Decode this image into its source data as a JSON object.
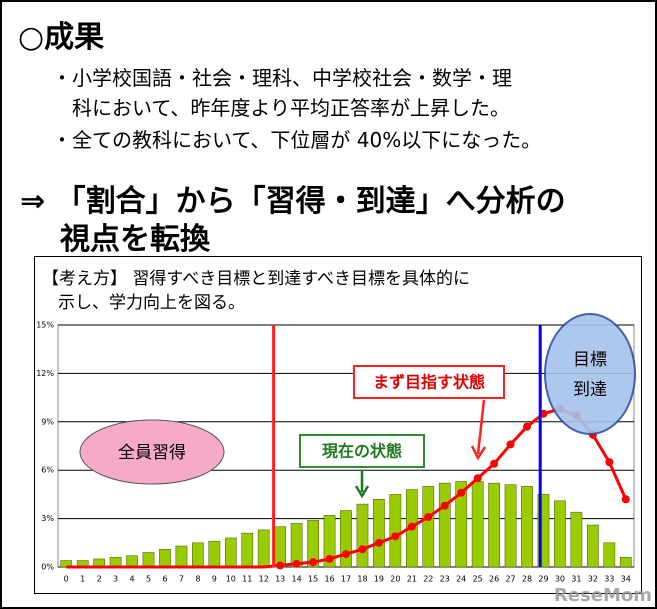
{
  "slide": {
    "title": "○成果",
    "bullets": [
      "・小学校国語・社会・理科、中学校社会・数学・理",
      "科において、昨年度より平均正答率が上昇した。",
      "・全ての教科において、下位層が 40%以下になった。"
    ],
    "conclusion": [
      "⇒ 「割合」から「習得・到達」へ分析の",
      "視点を転換"
    ],
    "concept": [
      "【考え方】 習得すべき目標と到達すべき目標を具体的に",
      "示し、学力向上を図る。"
    ],
    "watermark": "ReseMom"
  },
  "chart_data": {
    "type": "bar_line",
    "categories": [
      "0",
      "1",
      "2",
      "3",
      "4",
      "5",
      "6",
      "7",
      "8",
      "9",
      "10",
      "11",
      "12",
      "13",
      "14",
      "15",
      "16",
      "17",
      "18",
      "19",
      "20",
      "21",
      "22",
      "23",
      "24",
      "25",
      "26",
      "27",
      "28",
      "29",
      "30",
      "31",
      "32",
      "33",
      "34"
    ],
    "series": [
      {
        "type": "bar",
        "color": "#99cc00",
        "values": [
          0.4,
          0.4,
          0.5,
          0.6,
          0.7,
          0.9,
          1.1,
          1.3,
          1.5,
          1.6,
          1.8,
          2.1,
          2.3,
          2.5,
          2.7,
          2.9,
          3.2,
          3.5,
          3.9,
          4.2,
          4.5,
          4.8,
          5.0,
          5.2,
          5.3,
          5.3,
          5.2,
          5.1,
          5.0,
          4.5,
          4.1,
          3.4,
          2.6,
          1.5,
          0.6
        ]
      },
      {
        "type": "line",
        "color": "#ff0000",
        "values": [
          0,
          0,
          0,
          0,
          0,
          0,
          0,
          0,
          0,
          0,
          0,
          0,
          0,
          0.1,
          0.2,
          0.3,
          0.5,
          0.8,
          1.1,
          1.5,
          1.9,
          2.5,
          3.1,
          3.8,
          4.6,
          5.5,
          6.4,
          7.6,
          8.7,
          9.5,
          9.8,
          9.4,
          8.2,
          6.5,
          4.2
        ]
      }
    ],
    "ylim": [
      0,
      15
    ],
    "yticks": [
      {
        "value": 0,
        "label": "0%"
      },
      {
        "value": 3,
        "label": "3%"
      },
      {
        "value": 6,
        "label": "6%"
      },
      {
        "value": 9,
        "label": "9%"
      },
      {
        "value": 12,
        "label": "12%"
      },
      {
        "value": 15,
        "label": "15%"
      }
    ],
    "grid": true,
    "reference_lines": [
      {
        "x": 12.6,
        "color": "#ff2020"
      },
      {
        "x": 28.8,
        "color": "#0000ff"
      }
    ],
    "annotations": [
      "全員習得",
      "現在の状態",
      "まず目指す状態",
      "目標",
      "到達"
    ]
  }
}
